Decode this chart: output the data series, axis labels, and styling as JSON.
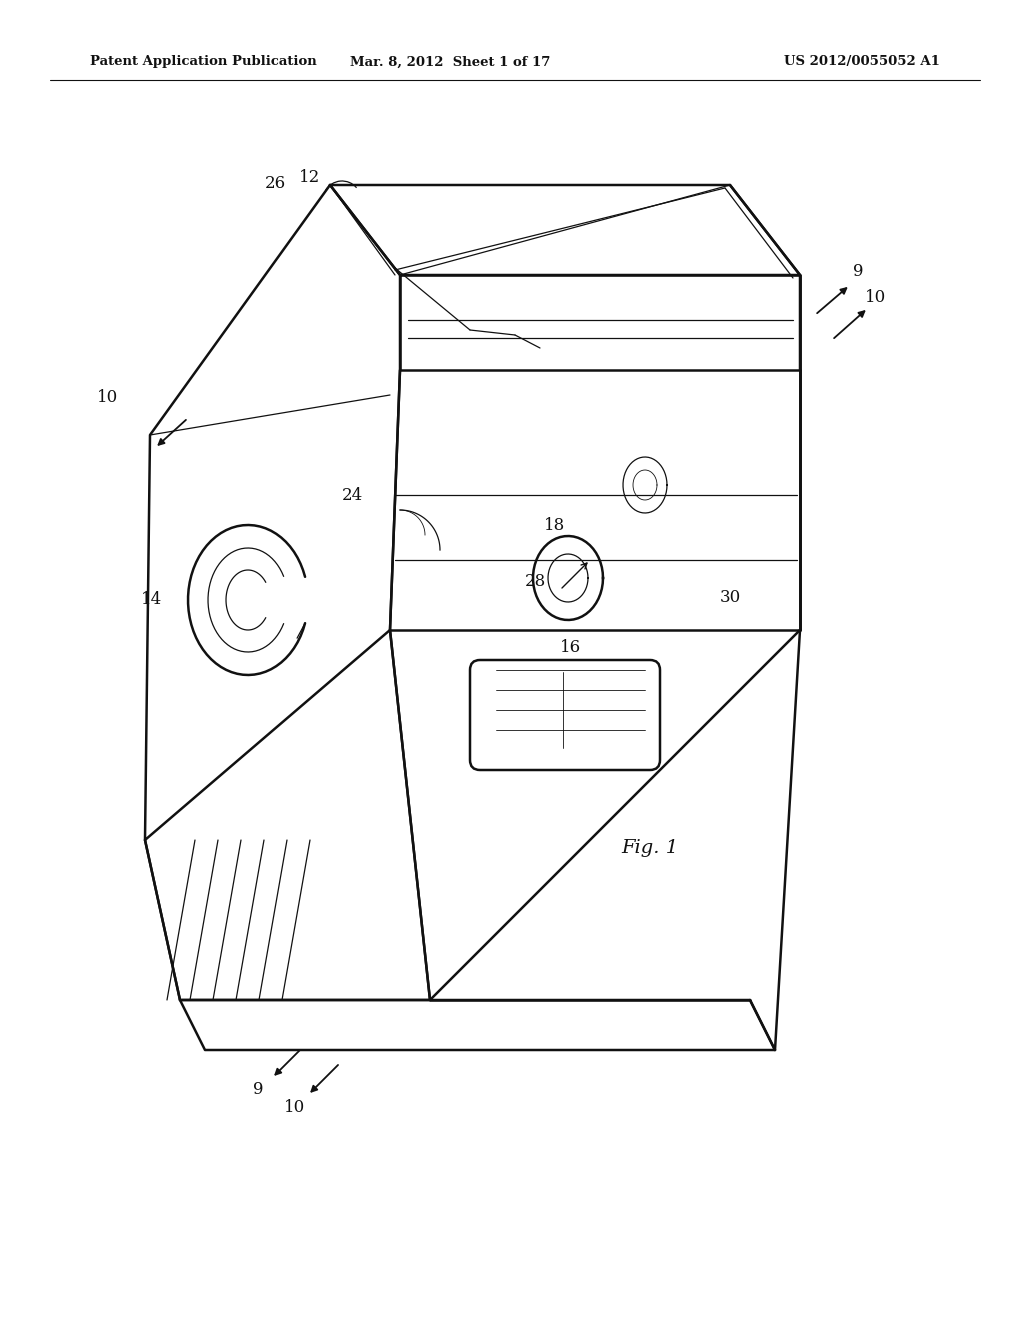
{
  "bg_color": "#ffffff",
  "line_color": "#111111",
  "header_left": "Patent Application Publication",
  "header_mid": "Mar. 8, 2012  Sheet 1 of 17",
  "header_right": "US 2012/0055052 A1",
  "fig_label": "Fig. 1",
  "lw_main": 1.8,
  "lw_thin": 0.9,
  "lw_detail": 0.6
}
